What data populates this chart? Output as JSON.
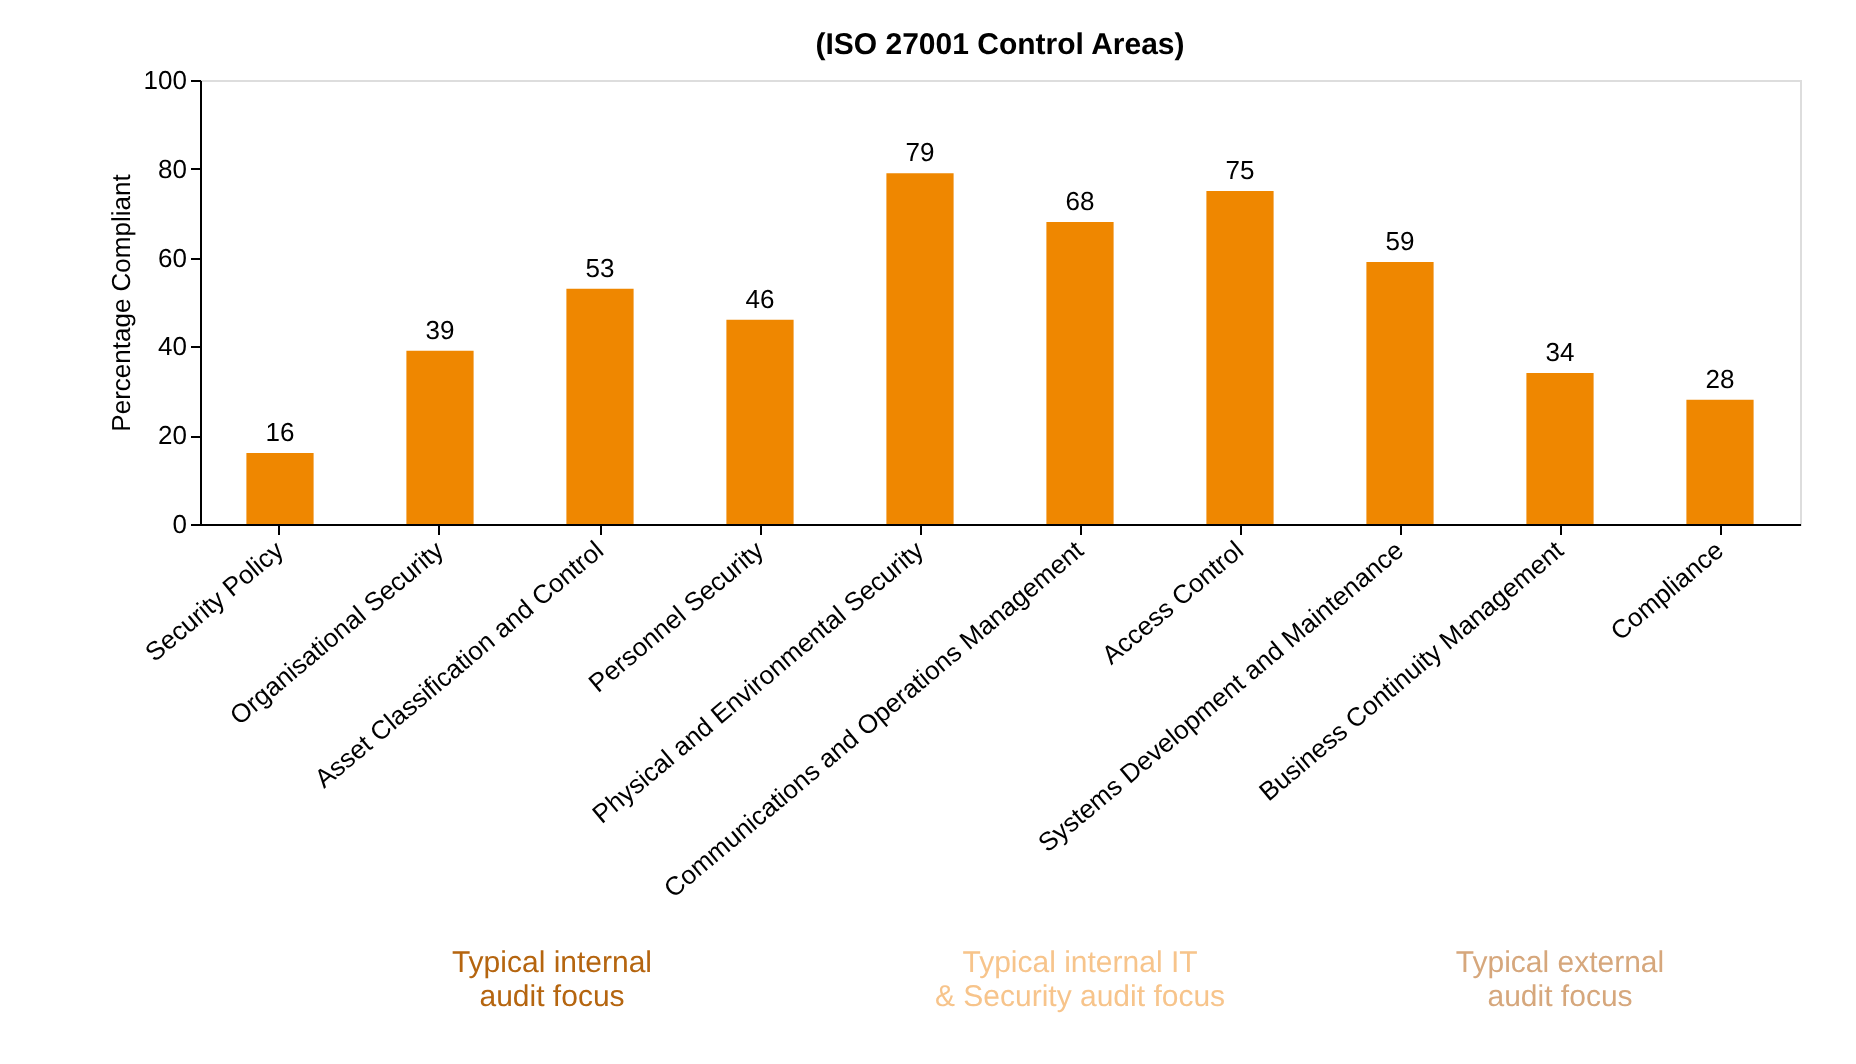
{
  "chart_data": {
    "type": "bar",
    "title": "(ISO 27001 Control Areas)",
    "ylabel": "Percentage Compliant",
    "categories": [
      "Security Policy",
      "Organisational Security",
      "Asset Classification and Control",
      "Personnel Security",
      "Physical and Environmental Security",
      "Communications and Operations Management",
      "Access Control",
      "Systems Development and Maintenance",
      "Business Continuity Management",
      "Compliance"
    ],
    "values": [
      16,
      39,
      53,
      46,
      79,
      68,
      75,
      59,
      34,
      28
    ],
    "color": "#ef8700",
    "ylim": [
      0,
      100
    ],
    "yticks": [
      0,
      20,
      40,
      60,
      80,
      100
    ],
    "grid": false,
    "data_labels": true,
    "annotations": [
      "Typical internal\naudit focus",
      "Typical internal IT\n& Security audit focus",
      "Typical external\naudit focus"
    ]
  }
}
